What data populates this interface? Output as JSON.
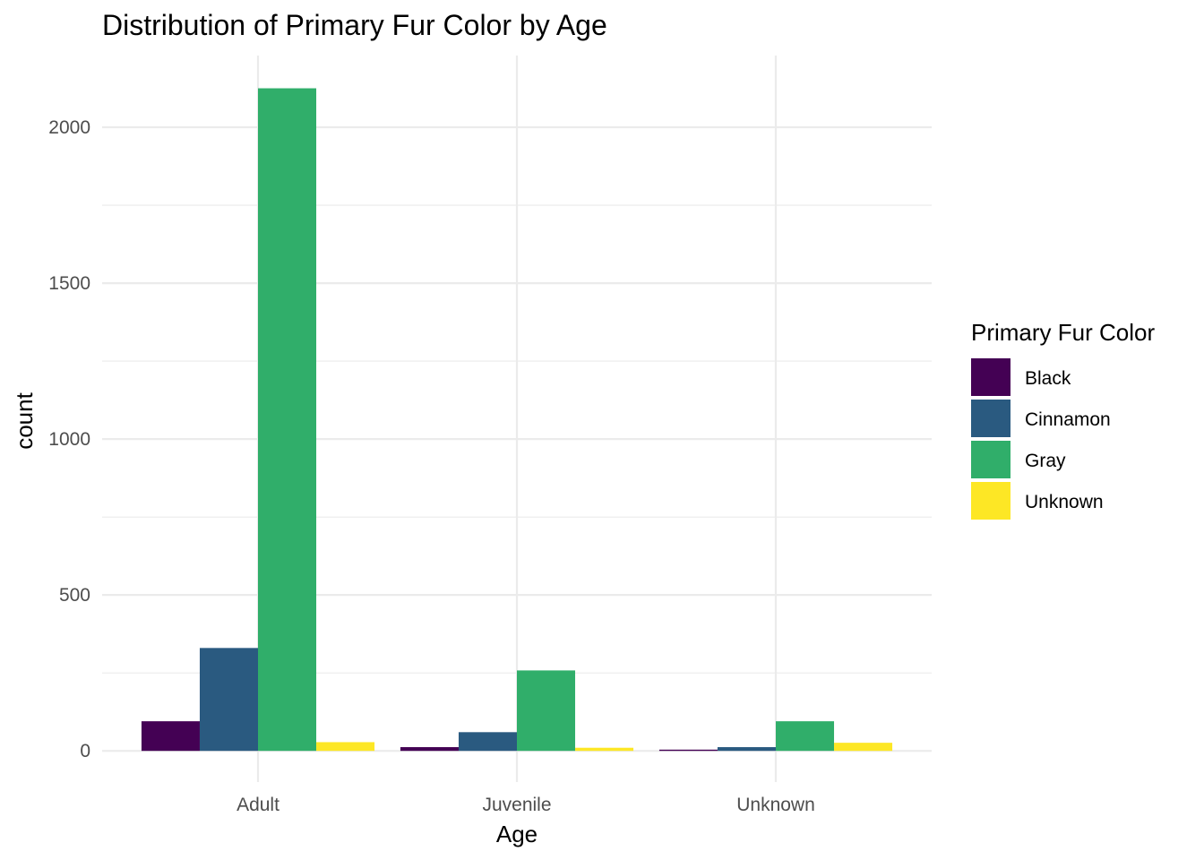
{
  "chart_data": {
    "type": "bar",
    "title": "Distribution of Primary Fur Color by Age",
    "xlabel": "Age",
    "ylabel": "count",
    "categories": [
      "Adult",
      "Juvenile",
      "Unknown"
    ],
    "series": [
      {
        "name": "Black",
        "color": "#440154",
        "values": [
          95,
          12,
          4
        ]
      },
      {
        "name": "Cinnamon",
        "color": "#2a5a80",
        "values": [
          330,
          60,
          12
        ]
      },
      {
        "name": "Gray",
        "color": "#30ae6a",
        "values": [
          2125,
          258,
          95
        ]
      },
      {
        "name": "Unknown",
        "color": "#fde725",
        "values": [
          28,
          10,
          26
        ]
      }
    ],
    "ylim": [
      -100,
      2230
    ],
    "yticks": [
      0,
      500,
      1000,
      1500,
      2000
    ],
    "ytick_labels": [
      "0",
      "500",
      "1000",
      "1500",
      "2000"
    ],
    "grid": true,
    "legend": {
      "title": "Primary Fur Color",
      "position": "right"
    }
  }
}
